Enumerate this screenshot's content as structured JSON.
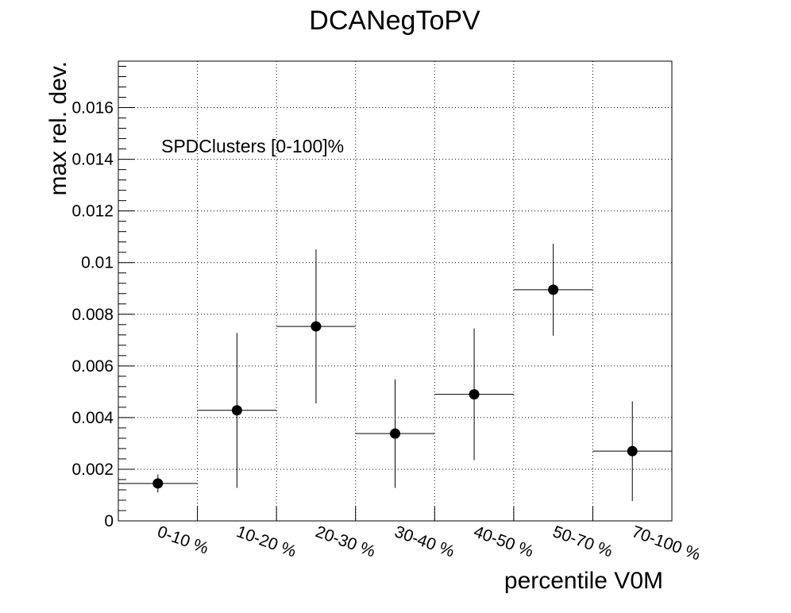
{
  "chart_data": {
    "type": "scatter",
    "title": "DCANegToPV",
    "xlabel": "percentile V0M",
    "ylabel": "max rel. dev.",
    "annotation": "SPDClusters [0-100]%",
    "categories": [
      "0-10 %",
      "10-20 %",
      "20-30 %",
      "30-40 %",
      "40-50 %",
      "50-70 %",
      "70-100 %"
    ],
    "series": [
      {
        "values": [
          0.00145,
          0.00428,
          0.00753,
          0.00338,
          0.0049,
          0.00895,
          0.0027
        ],
        "errors": [
          0.00035,
          0.003,
          0.00298,
          0.0021,
          0.00255,
          0.00178,
          0.00193
        ]
      }
    ],
    "ylim": [
      0,
      0.0178
    ],
    "yticks": [
      0,
      0.002,
      0.004,
      0.006,
      0.008,
      0.01,
      0.012,
      0.014,
      0.016
    ],
    "ytick_labels": [
      "0",
      "0.002",
      "0.004",
      "0.006",
      "0.008",
      "0.01",
      "0.012",
      "0.014",
      "0.016"
    ],
    "grid": true,
    "marker_color": "#000000"
  }
}
